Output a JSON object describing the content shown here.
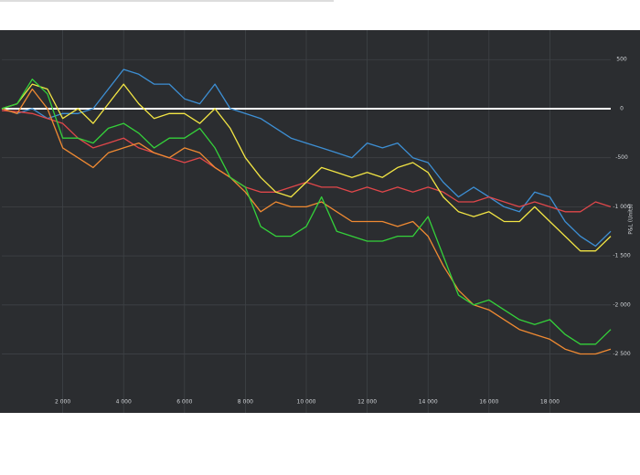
{
  "chart_data": {
    "type": "line",
    "y_title": "P&L (Units)",
    "x": [
      0,
      500,
      1000,
      1500,
      2000,
      2500,
      3000,
      3500,
      4000,
      4500,
      5000,
      5500,
      6000,
      6500,
      7000,
      7500,
      8000,
      8500,
      9000,
      9500,
      10000,
      10500,
      11000,
      11500,
      12000,
      12500,
      13000,
      13500,
      14000,
      14500,
      15000,
      15500,
      16000,
      16500,
      17000,
      17500,
      18000,
      18500,
      19000,
      19500,
      20000
    ],
    "series": [
      {
        "name": "Blue",
        "color": "#3d8fd4",
        "values": [
          0,
          -50,
          0,
          -100,
          -50,
          -50,
          0,
          200,
          400,
          350,
          250,
          250,
          100,
          50,
          250,
          0,
          -50,
          -100,
          -200,
          -300,
          -350,
          -400,
          -450,
          -500,
          -350,
          -400,
          -350,
          -500,
          -550,
          -750,
          -900,
          -800,
          -900,
          -1000,
          -1050,
          -850,
          -900,
          -1150,
          -1300,
          -1400,
          -1250
        ]
      },
      {
        "name": "Red",
        "color": "#e0474a",
        "values": [
          -20,
          -30,
          -50,
          -100,
          -150,
          -300,
          -400,
          -350,
          -300,
          -400,
          -450,
          -500,
          -550,
          -500,
          -600,
          -700,
          -800,
          -850,
          -850,
          -800,
          -750,
          -800,
          -800,
          -850,
          -800,
          -850,
          -800,
          -850,
          -800,
          -850,
          -950,
          -950,
          -900,
          -950,
          -1000,
          -950,
          -1000,
          -1050,
          -1050,
          -950,
          -1000
        ]
      },
      {
        "name": "Yellow",
        "color": "#f2e544",
        "values": [
          0,
          50,
          250,
          200,
          -100,
          0,
          -150,
          50,
          250,
          50,
          -100,
          -50,
          -50,
          -150,
          0,
          -200,
          -500,
          -700,
          -850,
          -900,
          -750,
          -600,
          -650,
          -700,
          -650,
          -700,
          -600,
          -550,
          -650,
          -900,
          -1050,
          -1100,
          -1050,
          -1150,
          -1150,
          -1000,
          -1150,
          -1300,
          -1450,
          -1450,
          -1300
        ]
      },
      {
        "name": "Orange",
        "color": "#f08a32",
        "values": [
          0,
          -50,
          200,
          0,
          -400,
          -500,
          -600,
          -450,
          -400,
          -350,
          -450,
          -500,
          -400,
          -450,
          -600,
          -700,
          -850,
          -1050,
          -950,
          -1000,
          -1000,
          -950,
          -1050,
          -1150,
          -1150,
          -1150,
          -1200,
          -1150,
          -1300,
          -1600,
          -1850,
          -2000,
          -2050,
          -2150,
          -2250,
          -2300,
          -2350,
          -2450,
          -2500,
          -2500,
          -2450
        ]
      },
      {
        "name": "Green",
        "color": "#34d13a",
        "values": [
          0,
          50,
          300,
          150,
          -300,
          -300,
          -350,
          -200,
          -150,
          -250,
          -400,
          -300,
          -300,
          -200,
          -400,
          -700,
          -800,
          -1200,
          -1300,
          -1300,
          -1200,
          -900,
          -1250,
          -1300,
          -1350,
          -1350,
          -1300,
          -1300,
          -1100,
          -1500,
          -1900,
          -2000,
          -1950,
          -2050,
          -2150,
          -2200,
          -2150,
          -2300,
          -2400,
          -2400,
          -2250
        ]
      }
    ],
    "xlim": [
      0,
      20000
    ],
    "ylim": [
      -3100,
      800
    ],
    "xticks": [
      {
        "value": 2000,
        "label": "2 000"
      },
      {
        "value": 4000,
        "label": "4 000"
      },
      {
        "value": 6000,
        "label": "6 000"
      },
      {
        "value": 8000,
        "label": "8 000"
      },
      {
        "value": 10000,
        "label": "10 000"
      },
      {
        "value": 12000,
        "label": "12 000"
      },
      {
        "value": 14000,
        "label": "14 000"
      },
      {
        "value": 16000,
        "label": "16 000"
      },
      {
        "value": 18000,
        "label": "18 000"
      }
    ],
    "yticks": [
      500,
      0,
      -500,
      {
        "value": -1000,
        "label": "-1 000"
      },
      {
        "value": -1500,
        "label": "-1 500"
      },
      {
        "value": -2000,
        "label": "-2 000"
      },
      {
        "value": -2500,
        "label": "-2 500"
      }
    ],
    "grid": true,
    "zero_line_color": "#ffffff",
    "background": "#2b2d30"
  }
}
